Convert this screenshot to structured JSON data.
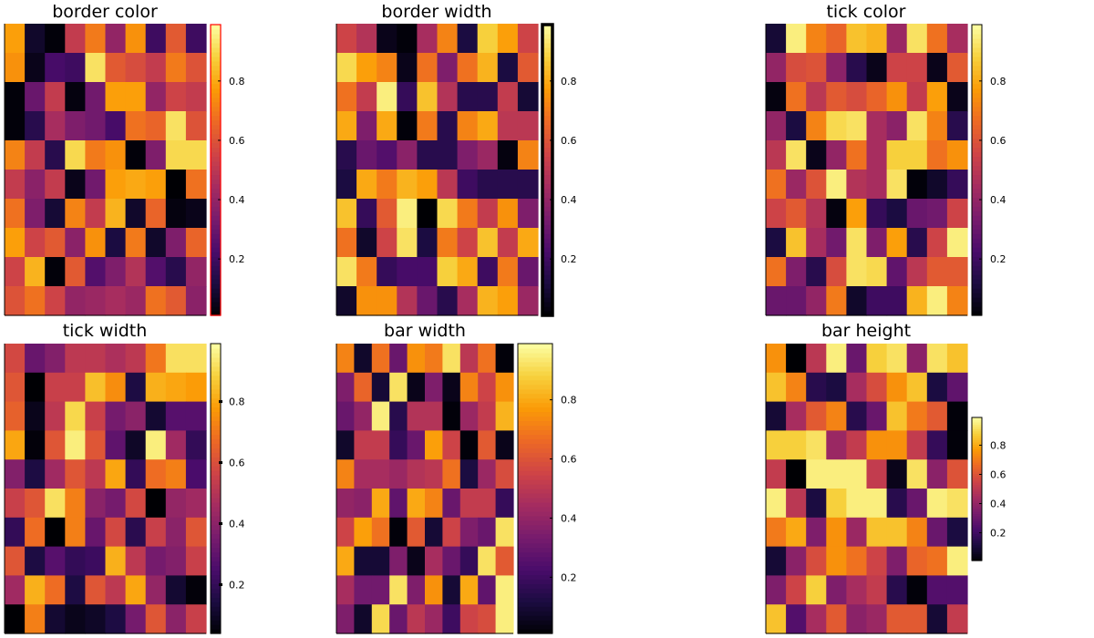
{
  "figure": {
    "colormap": "inferno",
    "colormap_stops": [
      "#000004",
      "#1b0c41",
      "#4a0c6b",
      "#781c6d",
      "#a52c60",
      "#cf4446",
      "#ed6925",
      "#fb9b06",
      "#f7d13d",
      "#fcffa4"
    ],
    "tick_labels": [
      "0.2",
      "0.4",
      "0.6",
      "0.8"
    ],
    "tick_values": [
      0.2,
      0.4,
      0.6,
      0.8
    ]
  },
  "chart_data": [
    {
      "type": "heatmap",
      "title": "border color",
      "clim": [
        0.01,
        0.99
      ],
      "colorbar_border_color": "#ff0000",
      "rows": 10,
      "cols": 10,
      "values": [
        [
          0.78,
          0.08,
          0.02,
          0.52,
          0.7,
          0.4,
          0.75,
          0.2,
          0.62,
          0.2
        ],
        [
          0.75,
          0.05,
          0.22,
          0.2,
          0.92,
          0.62,
          0.58,
          0.52,
          0.7,
          0.6
        ],
        [
          0.02,
          0.3,
          0.52,
          0.03,
          0.32,
          0.78,
          0.78,
          0.4,
          0.55,
          0.52
        ],
        [
          0.02,
          0.15,
          0.45,
          0.35,
          0.32,
          0.22,
          0.68,
          0.65,
          0.92,
          0.6
        ],
        [
          0.72,
          0.52,
          0.15,
          0.9,
          0.7,
          0.75,
          0.02,
          0.35,
          0.9,
          0.9
        ],
        [
          0.52,
          0.38,
          0.52,
          0.05,
          0.32,
          0.78,
          0.8,
          0.78,
          0.01,
          0.68
        ],
        [
          0.68,
          0.35,
          0.1,
          0.72,
          0.52,
          0.82,
          0.08,
          0.65,
          0.03,
          0.05
        ],
        [
          0.78,
          0.55,
          0.62,
          0.38,
          0.75,
          0.12,
          0.7,
          0.08,
          0.35,
          0.65
        ],
        [
          0.55,
          0.82,
          0.02,
          0.62,
          0.25,
          0.35,
          0.48,
          0.25,
          0.15,
          0.4
        ],
        [
          0.6,
          0.68,
          0.55,
          0.4,
          0.42,
          0.45,
          0.42,
          0.68,
          0.62,
          0.38
        ]
      ]
    },
    {
      "type": "heatmap",
      "title": "border width",
      "clim": [
        0.01,
        0.99
      ],
      "rows": 10,
      "cols": 10,
      "values": [
        [
          0.55,
          0.48,
          0.05,
          0.02,
          0.45,
          0.72,
          0.12,
          0.88,
          0.78,
          0.55
        ],
        [
          0.9,
          0.78,
          0.72,
          0.05,
          0.68,
          0.35,
          0.68,
          0.82,
          0.12,
          0.62
        ],
        [
          0.68,
          0.52,
          0.95,
          0.18,
          0.85,
          0.48,
          0.15,
          0.15,
          0.52,
          0.1
        ],
        [
          0.8,
          0.35,
          0.8,
          0.02,
          0.7,
          0.15,
          0.72,
          0.8,
          0.5,
          0.5
        ],
        [
          0.15,
          0.3,
          0.25,
          0.38,
          0.15,
          0.15,
          0.35,
          0.42,
          0.03,
          0.72
        ],
        [
          0.12,
          0.8,
          0.7,
          0.82,
          0.78,
          0.5,
          0.2,
          0.15,
          0.15,
          0.15
        ],
        [
          0.85,
          0.18,
          0.62,
          0.95,
          0.01,
          0.9,
          0.7,
          0.52,
          0.75,
          0.35
        ],
        [
          0.68,
          0.08,
          0.55,
          0.92,
          0.12,
          0.7,
          0.55,
          0.85,
          0.52,
          0.8
        ],
        [
          0.92,
          0.7,
          0.18,
          0.22,
          0.22,
          0.88,
          0.8,
          0.2,
          0.7,
          0.3
        ],
        [
          0.08,
          0.75,
          0.75,
          0.48,
          0.3,
          0.15,
          0.45,
          0.82,
          0.78,
          0.42
        ]
      ]
    },
    {
      "type": "heatmap",
      "title": "tick color",
      "clim": [
        0.01,
        0.99
      ],
      "rows": 10,
      "cols": 10,
      "values": [
        [
          0.1,
          0.95,
          0.72,
          0.65,
          0.85,
          0.82,
          0.42,
          0.92,
          0.68,
          0.45
        ],
        [
          0.4,
          0.58,
          0.6,
          0.38,
          0.15,
          0.05,
          0.55,
          0.55,
          0.05,
          0.62
        ],
        [
          0.03,
          0.68,
          0.5,
          0.62,
          0.58,
          0.65,
          0.75,
          0.52,
          0.78,
          0.05
        ],
        [
          0.4,
          0.12,
          0.72,
          0.9,
          0.92,
          0.45,
          0.38,
          0.92,
          0.72,
          0.15
        ],
        [
          0.5,
          0.92,
          0.05,
          0.4,
          0.68,
          0.45,
          0.88,
          0.88,
          0.68,
          0.75
        ],
        [
          0.68,
          0.42,
          0.6,
          0.95,
          0.48,
          0.45,
          0.92,
          0.02,
          0.08,
          0.18
        ],
        [
          0.55,
          0.62,
          0.48,
          0.03,
          0.78,
          0.18,
          0.12,
          0.3,
          0.32,
          0.55
        ],
        [
          0.12,
          0.85,
          0.45,
          0.32,
          0.92,
          0.35,
          0.78,
          0.15,
          0.55,
          0.95
        ],
        [
          0.68,
          0.35,
          0.15,
          0.58,
          0.92,
          0.9,
          0.28,
          0.5,
          0.62,
          0.62
        ],
        [
          0.3,
          0.3,
          0.4,
          0.7,
          0.08,
          0.2,
          0.2,
          0.82,
          0.95,
          0.72
        ]
      ]
    },
    {
      "type": "heatmap",
      "title": "tick width",
      "clim": [
        0.04,
        0.99
      ],
      "rows": 10,
      "cols": 10,
      "values": [
        [
          0.58,
          0.32,
          0.38,
          0.52,
          0.52,
          0.48,
          0.52,
          0.7,
          0.92,
          0.92
        ],
        [
          0.62,
          0.04,
          0.55,
          0.55,
          0.85,
          0.75,
          0.15,
          0.82,
          0.8,
          0.78
        ],
        [
          0.65,
          0.08,
          0.52,
          0.9,
          0.55,
          0.35,
          0.4,
          0.12,
          0.28,
          0.28
        ],
        [
          0.8,
          0.05,
          0.62,
          0.95,
          0.62,
          0.3,
          0.1,
          0.95,
          0.45,
          0.2
        ],
        [
          0.38,
          0.15,
          0.45,
          0.62,
          0.52,
          0.8,
          0.2,
          0.68,
          0.72,
          0.25
        ],
        [
          0.55,
          0.62,
          0.92,
          0.72,
          0.4,
          0.35,
          0.58,
          0.04,
          0.42,
          0.45
        ],
        [
          0.2,
          0.68,
          0.04,
          0.72,
          0.32,
          0.58,
          0.18,
          0.55,
          0.4,
          0.62
        ],
        [
          0.62,
          0.15,
          0.28,
          0.2,
          0.22,
          0.82,
          0.52,
          0.35,
          0.38,
          0.55
        ],
        [
          0.45,
          0.82,
          0.68,
          0.15,
          0.62,
          0.52,
          0.8,
          0.42,
          0.12,
          0.05
        ],
        [
          0.04,
          0.72,
          0.12,
          0.08,
          0.1,
          0.15,
          0.35,
          0.62,
          0.4,
          0.55
        ]
      ]
    },
    {
      "type": "heatmap",
      "title": "bar width",
      "clim": [
        0.01,
        0.99
      ],
      "rows": 10,
      "cols": 10,
      "values": [
        [
          0.72,
          0.08,
          0.68,
          0.3,
          0.75,
          0.7,
          0.92,
          0.5,
          0.68,
          0.02
        ],
        [
          0.35,
          0.65,
          0.1,
          0.92,
          0.05,
          0.35,
          0.05,
          0.72,
          0.55,
          0.75
        ],
        [
          0.3,
          0.4,
          0.95,
          0.15,
          0.48,
          0.48,
          0.02,
          0.42,
          0.52,
          0.82
        ],
        [
          0.08,
          0.52,
          0.52,
          0.18,
          0.3,
          0.78,
          0.55,
          0.02,
          0.62,
          0.05
        ],
        [
          0.72,
          0.45,
          0.45,
          0.42,
          0.48,
          0.5,
          0.68,
          0.12,
          0.42,
          0.58
        ],
        [
          0.4,
          0.38,
          0.8,
          0.28,
          0.8,
          0.72,
          0.3,
          0.52,
          0.52,
          0.18
        ],
        [
          0.55,
          0.78,
          0.68,
          0.02,
          0.62,
          0.1,
          0.55,
          0.35,
          0.3,
          0.92
        ],
        [
          0.8,
          0.1,
          0.1,
          0.35,
          0.05,
          0.45,
          0.3,
          0.18,
          0.92,
          0.62
        ],
        [
          0.45,
          0.32,
          0.32,
          0.92,
          0.35,
          0.75,
          0.1,
          0.8,
          0.28,
          0.95
        ],
        [
          0.35,
          0.08,
          0.9,
          0.3,
          0.5,
          0.42,
          0.2,
          0.55,
          0.58,
          0.95
        ]
      ]
    },
    {
      "type": "heatmap",
      "title": "bar height",
      "clim": [
        0.01,
        0.99
      ],
      "rows": 10,
      "cols": 10,
      "values": [
        [
          0.75,
          0.01,
          0.5,
          0.95,
          0.3,
          0.88,
          0.92,
          0.38,
          0.92,
          0.85
        ],
        [
          0.85,
          0.72,
          0.15,
          0.12,
          0.45,
          0.58,
          0.75,
          0.85,
          0.12,
          0.28
        ],
        [
          0.1,
          0.45,
          0.62,
          0.72,
          0.15,
          0.3,
          0.85,
          0.7,
          0.62,
          0.02
        ],
        [
          0.88,
          0.88,
          0.92,
          0.42,
          0.52,
          0.75,
          0.75,
          0.52,
          0.18,
          0.02
        ],
        [
          0.52,
          0.01,
          0.95,
          0.95,
          0.95,
          0.52,
          0.05,
          0.92,
          0.38,
          0.6
        ],
        [
          0.95,
          0.5,
          0.12,
          0.88,
          0.95,
          0.95,
          0.15,
          0.3,
          0.95,
          0.92
        ],
        [
          0.7,
          0.8,
          0.35,
          0.75,
          0.42,
          0.85,
          0.85,
          0.72,
          0.3,
          0.12
        ],
        [
          0.1,
          0.38,
          0.58,
          0.75,
          0.68,
          0.55,
          0.35,
          0.65,
          0.68,
          0.95
        ],
        [
          0.35,
          0.55,
          0.88,
          0.35,
          0.45,
          0.52,
          0.15,
          0.02,
          0.25,
          0.25
        ],
        [
          0.85,
          0.25,
          0.45,
          0.62,
          0.38,
          0.42,
          0.62,
          0.62,
          0.1,
          0.52
        ]
      ]
    }
  ]
}
